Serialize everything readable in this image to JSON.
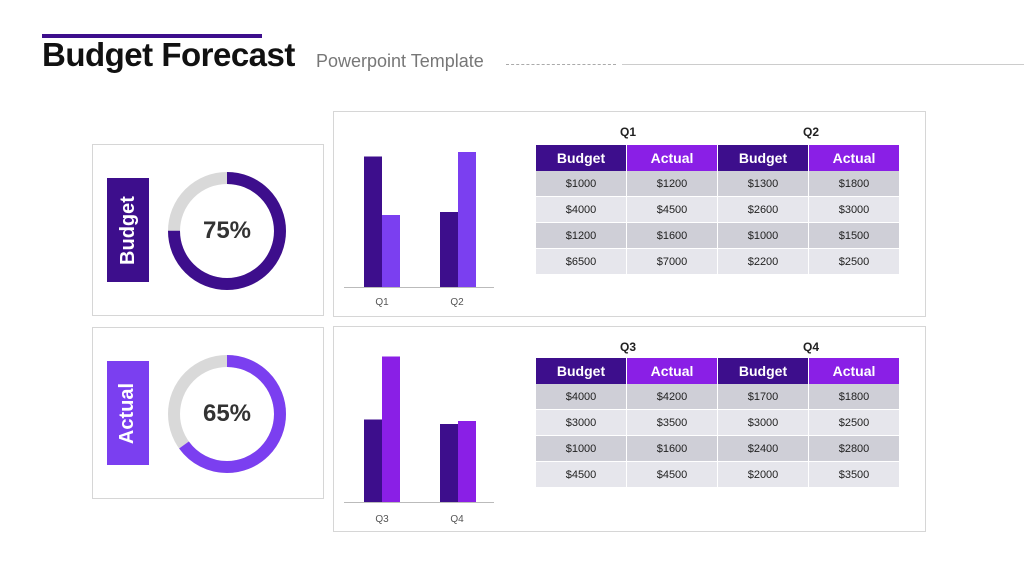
{
  "header": {
    "title": "Budget Forecast",
    "subtitle": "Powerpoint Template"
  },
  "colors": {
    "dark_purple": "#3d0e8c",
    "light_purple": "#7b3ff0",
    "bright_purple": "#8a1fe6",
    "ring_track": "#d9d9d9"
  },
  "gauges": [
    {
      "label": "Budget",
      "percent_text": "75%",
      "value": 0.75,
      "label_color": "#3d0e8c",
      "ring_color": "#3d0e8c"
    },
    {
      "label": "Actual",
      "percent_text": "65%",
      "value": 0.65,
      "label_color": "#7b3ff0",
      "ring_color": "#7b3ff0"
    }
  ],
  "chart_data": [
    {
      "type": "bar",
      "categories": [
        "Q1",
        "Q2"
      ],
      "series": [
        {
          "values": [
            0.87,
            0.5
          ],
          "color": "#3d0e8c"
        },
        {
          "values": [
            0.48,
            0.9
          ],
          "color": "#7b3ff0"
        }
      ]
    },
    {
      "type": "bar",
      "categories": [
        "Q3",
        "Q4"
      ],
      "series": [
        {
          "values": [
            0.55,
            0.52
          ],
          "color": "#3d0e8c"
        },
        {
          "values": [
            0.97,
            0.54
          ],
          "color": "#8a1fe6"
        }
      ]
    }
  ],
  "tables": [
    {
      "quarters": [
        "Q1",
        "Q2"
      ],
      "headers": [
        "Budget",
        "Actual",
        "Budget",
        "Actual"
      ],
      "rows": [
        [
          "$1000",
          "$1200",
          "$1300",
          "$1800"
        ],
        [
          "$4000",
          "$4500",
          "$2600",
          "$3000"
        ],
        [
          "$1200",
          "$1600",
          "$1000",
          "$1500"
        ],
        [
          "$6500",
          "$7000",
          "$2200",
          "$2500"
        ]
      ]
    },
    {
      "quarters": [
        "Q3",
        "Q4"
      ],
      "headers": [
        "Budget",
        "Actual",
        "Budget",
        "Actual"
      ],
      "rows": [
        [
          "$4000",
          "$4200",
          "$1700",
          "$1800"
        ],
        [
          "$3000",
          "$3500",
          "$3000",
          "$2500"
        ],
        [
          "$1000",
          "$1600",
          "$2400",
          "$2800"
        ],
        [
          "$4500",
          "$4500",
          "$2000",
          "$3500"
        ]
      ]
    }
  ]
}
